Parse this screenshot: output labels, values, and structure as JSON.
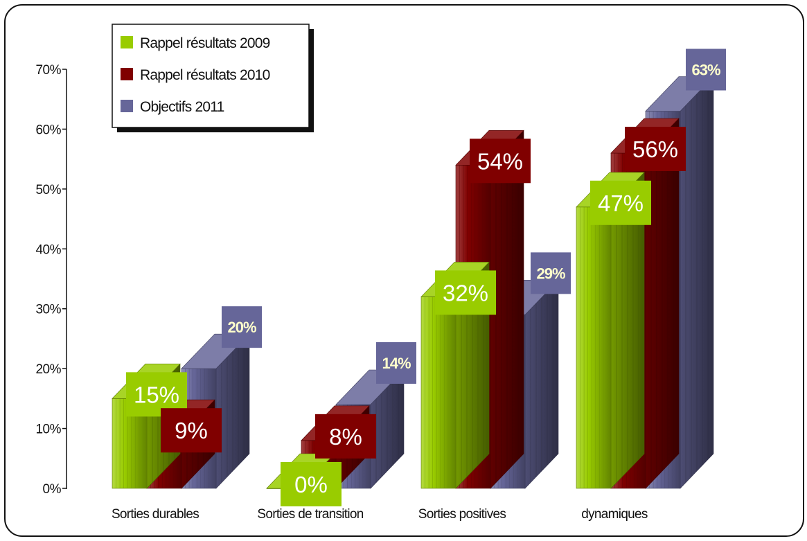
{
  "chart_data": {
    "type": "bar",
    "categories": [
      "Sorties durables",
      "Sorties de transition",
      "Sorties positives",
      "dynamiques"
    ],
    "series": [
      {
        "name": "Rappel résultats 2009",
        "values": [
          15,
          0,
          32,
          47
        ],
        "labels": [
          "15%",
          "0%",
          "32%",
          "47%"
        ],
        "color": "#99cc00"
      },
      {
        "name": "Rappel résultats 2010",
        "values": [
          9,
          8,
          54,
          56
        ],
        "labels": [
          "9%",
          "8%",
          "54%",
          "56%"
        ],
        "color": "#800000"
      },
      {
        "name": "Objectifs 2011",
        "values": [
          20,
          14,
          29,
          63
        ],
        "labels": [
          "20%",
          "14%",
          "29%",
          "63%"
        ],
        "color": "#666699"
      }
    ],
    "ylim": [
      0,
      70
    ],
    "yticks": [
      "0%",
      "10%",
      "20%",
      "30%",
      "40%",
      "50%",
      "60%",
      "70%"
    ],
    "legend_position": "top-left",
    "grid": false,
    "style": "3d-cylinder"
  }
}
